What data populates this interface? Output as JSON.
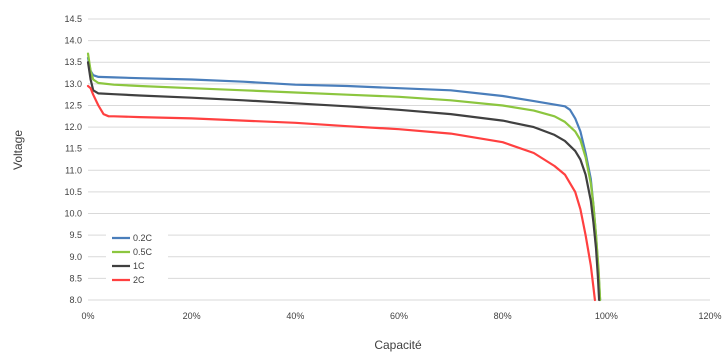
{
  "chart_data": {
    "type": "line",
    "title": "",
    "xlabel": "Capacité",
    "ylabel": "Voltage",
    "xlim": [
      0,
      120
    ],
    "ylim": [
      8.0,
      14.5
    ],
    "grid": true,
    "legend_position": "bottom-left",
    "x_ticks": [
      "0%",
      "20%",
      "40%",
      "60%",
      "80%",
      "100%",
      "120%"
    ],
    "y_ticks": [
      "8.0",
      "8.5",
      "9.0",
      "9.5",
      "10.0",
      "10.5",
      "11.0",
      "11.5",
      "12.0",
      "12.5",
      "13.0",
      "13.5",
      "14.0",
      "14.5"
    ],
    "series": [
      {
        "name": "0.2C",
        "color": "#4a7ebb",
        "points": [
          [
            0,
            13.6
          ],
          [
            0.5,
            13.3
          ],
          [
            1,
            13.2
          ],
          [
            2,
            13.16
          ],
          [
            5,
            13.15
          ],
          [
            10,
            13.13
          ],
          [
            20,
            13.1
          ],
          [
            30,
            13.05
          ],
          [
            40,
            12.98
          ],
          [
            50,
            12.95
          ],
          [
            60,
            12.9
          ],
          [
            70,
            12.85
          ],
          [
            80,
            12.72
          ],
          [
            86,
            12.6
          ],
          [
            90,
            12.52
          ],
          [
            92,
            12.48
          ],
          [
            93,
            12.4
          ],
          [
            94,
            12.2
          ],
          [
            95,
            11.9
          ],
          [
            96,
            11.4
          ],
          [
            97,
            10.8
          ],
          [
            97.5,
            10.2
          ],
          [
            98,
            9.5
          ],
          [
            98.5,
            8.6
          ],
          [
            98.8,
            8.0
          ]
        ]
      },
      {
        "name": "0.5C",
        "color": "#8cc63f",
        "points": [
          [
            0,
            13.7
          ],
          [
            0.5,
            13.3
          ],
          [
            1,
            13.1
          ],
          [
            2,
            13.02
          ],
          [
            5,
            12.98
          ],
          [
            10,
            12.95
          ],
          [
            20,
            12.9
          ],
          [
            30,
            12.85
          ],
          [
            40,
            12.8
          ],
          [
            50,
            12.75
          ],
          [
            60,
            12.7
          ],
          [
            70,
            12.62
          ],
          [
            80,
            12.5
          ],
          [
            86,
            12.38
          ],
          [
            90,
            12.25
          ],
          [
            92,
            12.12
          ],
          [
            94,
            11.9
          ],
          [
            95,
            11.7
          ],
          [
            96,
            11.3
          ],
          [
            97,
            10.7
          ],
          [
            97.5,
            10.2
          ],
          [
            98,
            9.5
          ],
          [
            98.5,
            8.7
          ],
          [
            98.8,
            8.0
          ]
        ]
      },
      {
        "name": "1C",
        "color": "#404040",
        "points": [
          [
            0,
            13.5
          ],
          [
            0.5,
            13.1
          ],
          [
            1,
            12.85
          ],
          [
            2,
            12.78
          ],
          [
            5,
            12.76
          ],
          [
            10,
            12.73
          ],
          [
            20,
            12.68
          ],
          [
            30,
            12.62
          ],
          [
            40,
            12.55
          ],
          [
            50,
            12.48
          ],
          [
            60,
            12.4
          ],
          [
            70,
            12.3
          ],
          [
            80,
            12.15
          ],
          [
            86,
            12.0
          ],
          [
            90,
            11.82
          ],
          [
            92,
            11.68
          ],
          [
            94,
            11.45
          ],
          [
            95,
            11.25
          ],
          [
            96,
            10.9
          ],
          [
            97,
            10.3
          ],
          [
            97.5,
            9.8
          ],
          [
            98,
            9.2
          ],
          [
            98.4,
            8.5
          ],
          [
            98.6,
            8.0
          ]
        ]
      },
      {
        "name": "2C",
        "color": "#ff4040",
        "points": [
          [
            0,
            12.95
          ],
          [
            0.5,
            12.9
          ],
          [
            1,
            12.75
          ],
          [
            2,
            12.5
          ],
          [
            3,
            12.3
          ],
          [
            4,
            12.25
          ],
          [
            5,
            12.25
          ],
          [
            10,
            12.23
          ],
          [
            20,
            12.2
          ],
          [
            30,
            12.15
          ],
          [
            40,
            12.1
          ],
          [
            50,
            12.02
          ],
          [
            60,
            11.95
          ],
          [
            70,
            11.85
          ],
          [
            80,
            11.65
          ],
          [
            86,
            11.4
          ],
          [
            90,
            11.1
          ],
          [
            92,
            10.9
          ],
          [
            94,
            10.5
          ],
          [
            95,
            10.1
          ],
          [
            96,
            9.5
          ],
          [
            97,
            8.8
          ],
          [
            97.5,
            8.3
          ],
          [
            97.8,
            8.0
          ]
        ]
      }
    ]
  }
}
